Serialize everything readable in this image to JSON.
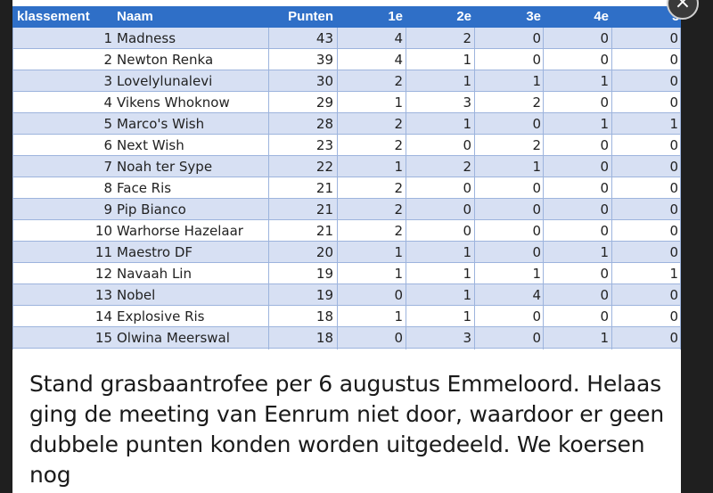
{
  "table": {
    "headers": {
      "rank": "klassement",
      "name": "Naam",
      "points": "Punten",
      "p1": "1e",
      "p2": "2e",
      "p3": "3e",
      "p4": "4e",
      "p5": "5e"
    },
    "rows": [
      {
        "rank": "1",
        "name": "Madness",
        "points": "43",
        "p1": "4",
        "p2": "2",
        "p3": "0",
        "p4": "0",
        "p5": "0"
      },
      {
        "rank": "2",
        "name": "Newton Renka",
        "points": "39",
        "p1": "4",
        "p2": "1",
        "p3": "0",
        "p4": "0",
        "p5": "0"
      },
      {
        "rank": "3",
        "name": "Lovelylunalevi",
        "points": "30",
        "p1": "2",
        "p2": "1",
        "p3": "1",
        "p4": "1",
        "p5": "0"
      },
      {
        "rank": "4",
        "name": "Vikens Whoknow",
        "points": "29",
        "p1": "1",
        "p2": "3",
        "p3": "2",
        "p4": "0",
        "p5": "0"
      },
      {
        "rank": "5",
        "name": "Marco's Wish",
        "points": "28",
        "p1": "2",
        "p2": "1",
        "p3": "0",
        "p4": "1",
        "p5": "1"
      },
      {
        "rank": "6",
        "name": "Next Wish",
        "points": "23",
        "p1": "2",
        "p2": "0",
        "p3": "2",
        "p4": "0",
        "p5": "0"
      },
      {
        "rank": "7",
        "name": "Noah ter Sype",
        "points": "22",
        "p1": "1",
        "p2": "2",
        "p3": "1",
        "p4": "0",
        "p5": "0"
      },
      {
        "rank": "8",
        "name": "Face Ris",
        "points": "21",
        "p1": "2",
        "p2": "0",
        "p3": "0",
        "p4": "0",
        "p5": "0"
      },
      {
        "rank": "9",
        "name": "Pip Bianco",
        "points": "21",
        "p1": "2",
        "p2": "0",
        "p3": "0",
        "p4": "0",
        "p5": "0"
      },
      {
        "rank": "10",
        "name": "Warhorse Hazelaar",
        "points": "21",
        "p1": "2",
        "p2": "0",
        "p3": "0",
        "p4": "0",
        "p5": "0"
      },
      {
        "rank": "11",
        "name": "Maestro DF",
        "points": "20",
        "p1": "1",
        "p2": "1",
        "p3": "0",
        "p4": "1",
        "p5": "0"
      },
      {
        "rank": "12",
        "name": "Navaah Lin",
        "points": "19",
        "p1": "1",
        "p2": "1",
        "p3": "1",
        "p4": "0",
        "p5": "1"
      },
      {
        "rank": "13",
        "name": "Nobel",
        "points": "19",
        "p1": "0",
        "p2": "1",
        "p3": "4",
        "p4": "0",
        "p5": "0"
      },
      {
        "rank": "14",
        "name": "Explosive Ris",
        "points": "18",
        "p1": "1",
        "p2": "1",
        "p3": "0",
        "p4": "0",
        "p5": "0"
      },
      {
        "rank": "15",
        "name": "Olwina Meerswal",
        "points": "18",
        "p1": "0",
        "p2": "3",
        "p3": "0",
        "p4": "1",
        "p5": "0"
      }
    ]
  },
  "caption": {
    "text": "Stand grasbaantrofee per 6 augustus Emmeloord. Helaas ging de meeting van Eenrum niet door, waardoor er geen dubbele punten konden worden uitgedeeld. We koersen nog"
  },
  "close_button": {
    "glyph": "×",
    "icon": "close-icon"
  },
  "colors": {
    "header_bg": "#2f6fc7",
    "band": "#d7e0f3",
    "grid": "#9db4dd"
  }
}
